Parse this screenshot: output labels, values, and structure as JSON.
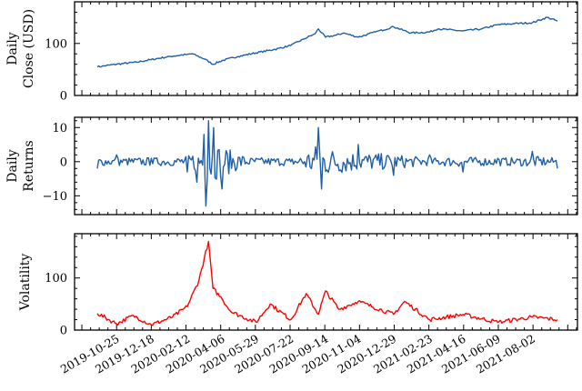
{
  "figure": {
    "panels": [
      {
        "id": "close",
        "ylabel_lines": [
          "Daily",
          "Close (USD)"
        ],
        "yticks": [
          0,
          100
        ],
        "ylim": [
          0,
          180
        ],
        "color": "#1f5fa8"
      },
      {
        "id": "returns",
        "ylabel_lines": [
          "Daily",
          "Returns"
        ],
        "yticks": [
          -10,
          0,
          10
        ],
        "ylim": [
          -15.5,
          13
        ],
        "color": "#1f5fa8"
      },
      {
        "id": "volatility",
        "ylabel_lines": [
          "Volatility"
        ],
        "yticks": [
          0,
          100
        ],
        "ylim": [
          0,
          185
        ],
        "color": "#ff0000"
      }
    ],
    "xtick_labels": [
      "2019-10-25",
      "2019-12-18",
      "2020-02-12",
      "2020-04-06",
      "2020-05-29",
      "2020-07-22",
      "2020-09-14",
      "2020-11-04",
      "2020-12-29",
      "2021-02-23",
      "2021-04-16",
      "2021-06-09",
      "2021-08-02"
    ]
  },
  "chart_data": [
    {
      "type": "line",
      "title": "",
      "xlabel": "",
      "ylabel": "Daily Close (USD)",
      "ylim": [
        0,
        180
      ],
      "yticks": [
        0,
        100
      ],
      "grid": false,
      "x": [
        "2019-09-25",
        "2019-10-25",
        "2019-11-25",
        "2019-12-18",
        "2020-01-15",
        "2020-02-12",
        "2020-02-20",
        "2020-03-10",
        "2020-03-23",
        "2020-04-06",
        "2020-05-01",
        "2020-05-29",
        "2020-06-25",
        "2020-07-22",
        "2020-08-10",
        "2020-08-28",
        "2020-09-03",
        "2020-09-14",
        "2020-10-01",
        "2020-10-12",
        "2020-11-04",
        "2020-12-01",
        "2020-12-29",
        "2021-01-25",
        "2021-02-23",
        "2021-03-08",
        "2021-04-16",
        "2021-05-15",
        "2021-06-09",
        "2021-07-05",
        "2021-08-02",
        "2021-08-25",
        "2021-09-10"
      ],
      "series": [
        {
          "name": "Daily Close",
          "color": "#1f5fa8",
          "values": [
            55,
            60,
            64,
            69,
            75,
            79,
            80,
            70,
            60,
            67,
            75,
            82,
            88,
            96,
            108,
            118,
            128,
            112,
            116,
            120,
            112,
            122,
            132,
            120,
            122,
            128,
            124,
            128,
            136,
            138,
            140,
            150,
            143
          ]
        }
      ]
    },
    {
      "type": "line",
      "title": "",
      "xlabel": "",
      "ylabel": "Daily Returns",
      "ylim": [
        -15.5,
        13
      ],
      "yticks": [
        -10,
        0,
        10
      ],
      "grid": false,
      "x": [
        "2019-09-25",
        "2019-10-25",
        "2019-12-18",
        "2020-02-12",
        "2020-02-27",
        "2020-03-09",
        "2020-03-12",
        "2020-03-16",
        "2020-03-24",
        "2020-04-06",
        "2020-05-29",
        "2020-07-22",
        "2020-09-03",
        "2020-09-08",
        "2020-11-04",
        "2020-12-29",
        "2021-02-23",
        "2021-04-16",
        "2021-06-09",
        "2021-08-02",
        "2021-09-10"
      ],
      "series": [
        {
          "name": "Daily Returns",
          "color": "#1f5fa8",
          "values": [
            -2,
            2,
            1,
            -3,
            -6,
            8,
            -13,
            12,
            10,
            -8,
            1,
            0,
            10,
            -8,
            5,
            -4,
            2,
            -3,
            1,
            3,
            -2
          ]
        }
      ]
    },
    {
      "type": "line",
      "title": "",
      "xlabel": "",
      "ylabel": "Volatility",
      "ylim": [
        0,
        185
      ],
      "yticks": [
        0,
        100
      ],
      "grid": false,
      "x": [
        "2019-09-25",
        "2019-10-25",
        "2019-11-20",
        "2019-12-18",
        "2020-01-20",
        "2020-02-12",
        "2020-03-01",
        "2020-03-16",
        "2020-03-23",
        "2020-04-06",
        "2020-04-20",
        "2020-05-29",
        "2020-06-20",
        "2020-07-22",
        "2020-08-15",
        "2020-09-03",
        "2020-09-14",
        "2020-10-05",
        "2020-11-04",
        "2020-12-29",
        "2021-01-15",
        "2021-02-23",
        "2021-04-16",
        "2021-06-09",
        "2021-08-02",
        "2021-09-10"
      ],
      "series": [
        {
          "name": "Volatility",
          "color": "#ff0000",
          "values": [
            32,
            12,
            28,
            10,
            25,
            45,
            95,
            170,
            80,
            60,
            35,
            15,
            50,
            20,
            70,
            30,
            75,
            40,
            55,
            30,
            55,
            20,
            30,
            15,
            25,
            20
          ]
        }
      ]
    }
  ]
}
